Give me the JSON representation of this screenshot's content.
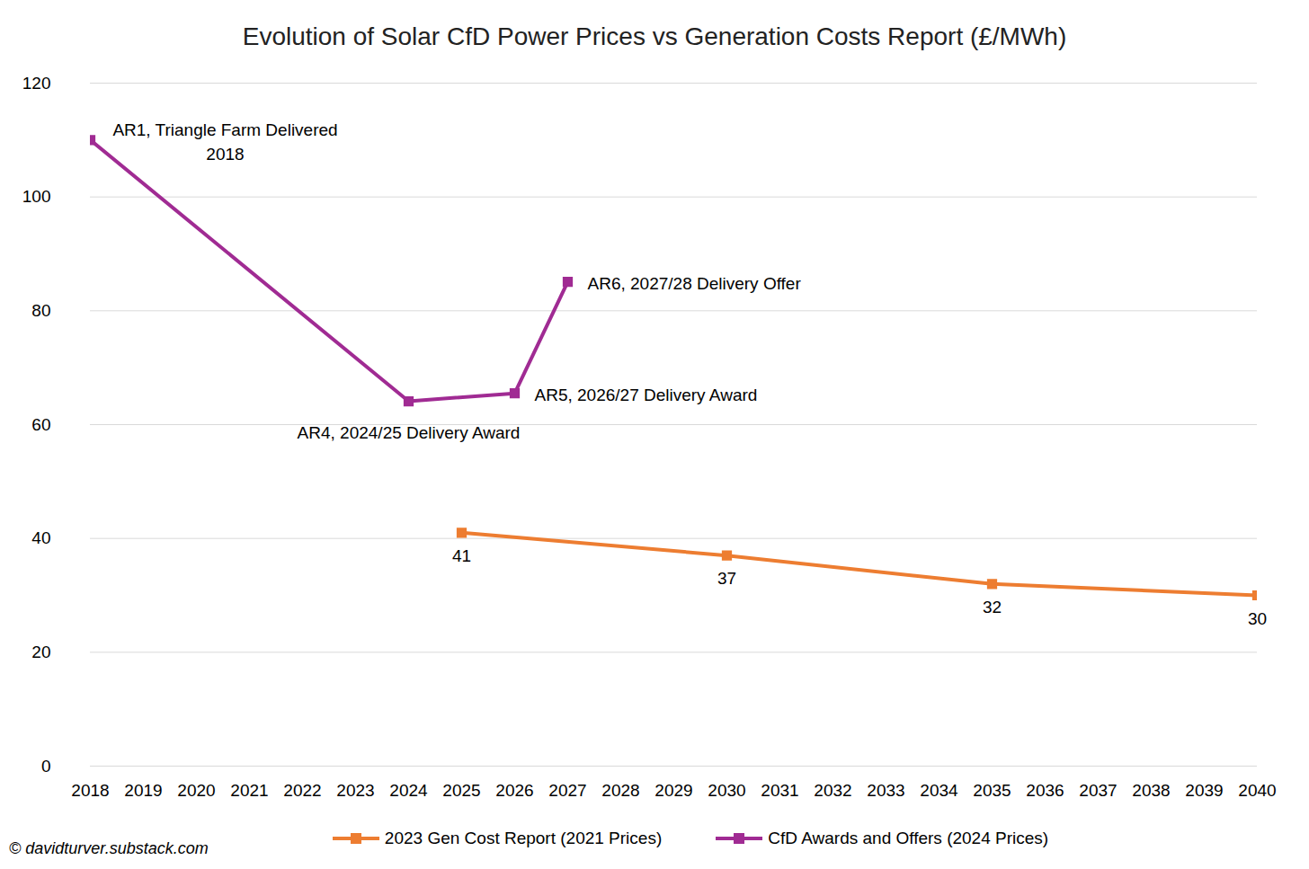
{
  "chart_data": {
    "type": "line",
    "title": "Evolution of Solar CfD Power Prices vs Generation Costs Report (£/MWh)",
    "caption": "© davidturver.substack.com",
    "xlim": [
      2018,
      2040
    ],
    "xticks": [
      2018,
      2019,
      2020,
      2021,
      2022,
      2023,
      2024,
      2025,
      2026,
      2027,
      2028,
      2029,
      2030,
      2031,
      2032,
      2033,
      2034,
      2035,
      2036,
      2037,
      2038,
      2039,
      2040
    ],
    "ylim": [
      0,
      120
    ],
    "yticks": [
      0,
      20,
      40,
      60,
      80,
      100,
      120
    ],
    "grid": true,
    "legend": "bottom",
    "series": [
      {
        "name": "2023 Gen Cost Report (2021 Prices)",
        "color": "#ed7d31",
        "marker": "square",
        "line_style": "solid",
        "x": [
          2025,
          2030,
          2035,
          2040
        ],
        "values": [
          41,
          37,
          32,
          30
        ],
        "data_labels": true
      },
      {
        "name": "CfD Awards and Offers (2024 Prices)",
        "color": "#a02b93",
        "marker": "square",
        "line_style": "solid",
        "x": [
          2018,
          2024,
          2026,
          2027
        ],
        "values": [
          110,
          64.1,
          65.5,
          85.1
        ],
        "point_labels": [
          "AR1, Triangle Farm Delivered\n2018",
          "AR4, 2024/25 Delivery Award",
          "AR5, 2026/27 Delivery Award",
          "AR6, 2027/28 Delivery Offer"
        ]
      }
    ]
  }
}
